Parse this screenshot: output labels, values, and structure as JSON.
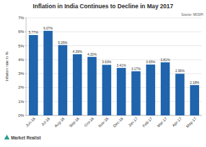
{
  "chart_data": {
    "type": "bar",
    "title": "Inflation in India Continues to Decline in May 2017",
    "source": "Source: MOSPI",
    "y_label": "Inflation rate in %",
    "brand": "Market Realist",
    "categories": [
      "Jun-16",
      "Jul-16",
      "Aug-16",
      "Sep-16",
      "Oct-16",
      "Nov-16",
      "Dec-16",
      "Jan-17",
      "Feb-17",
      "Mar-17",
      "Apr-17",
      "May-17"
    ],
    "values": [
      5.77,
      6.07,
      5.05,
      4.39,
      4.2,
      3.63,
      3.41,
      3.17,
      3.65,
      3.81,
      2.99,
      2.18
    ],
    "value_labels": [
      "5.77%",
      "6.07%",
      "5.05%",
      "4.39%",
      "4.20%",
      "3.63%",
      "3.41%",
      "3.17%",
      "3.65%",
      "3.81%",
      "2.99%",
      "2.18%"
    ],
    "data_labels": true,
    "color": "#1f64ad",
    "ylim": [
      0,
      7
    ],
    "yticks": [
      {
        "value": 0,
        "label": "0%"
      },
      {
        "value": 1,
        "label": "1%"
      },
      {
        "value": 2,
        "label": "2%"
      },
      {
        "value": 3,
        "label": "3%"
      },
      {
        "value": 4,
        "label": "4%"
      },
      {
        "value": 5,
        "label": "5%"
      },
      {
        "value": 6,
        "label": "6%"
      },
      {
        "value": 7,
        "label": "7%"
      }
    ],
    "grid": true
  }
}
